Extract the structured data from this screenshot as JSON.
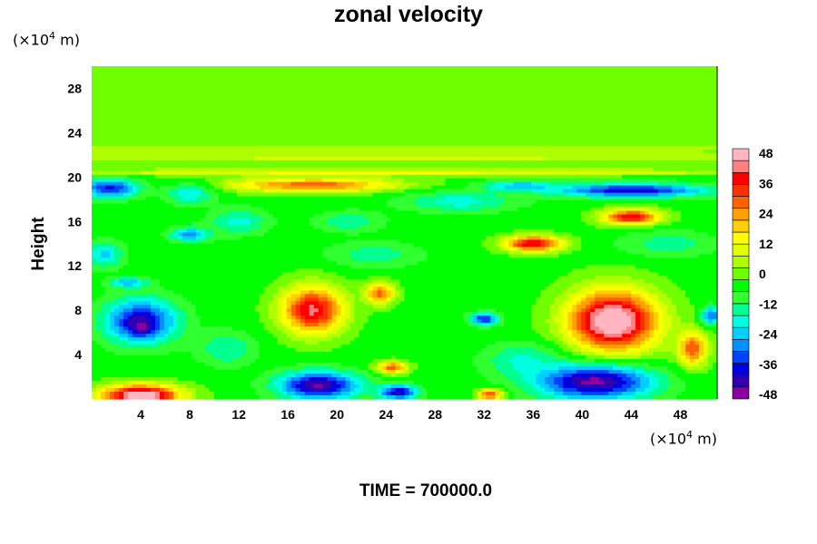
{
  "chart_data": {
    "type": "heatmap",
    "title": "zonal velocity",
    "ylabel": "Height",
    "xlabel": "",
    "x_unit": "(×10",
    "x_unit_exp": "4",
    "x_unit_tail": " m)",
    "y_unit": "(×10",
    "y_unit_exp": "4",
    "y_unit_tail": " m)",
    "annotation": "TIME = 700000.0",
    "xlim": [
      0,
      51
    ],
    "ylim": [
      0,
      30
    ],
    "x_ticks": [
      4,
      8,
      12,
      16,
      20,
      24,
      28,
      32,
      36,
      40,
      44,
      48
    ],
    "y_ticks": [
      4,
      8,
      12,
      16,
      20,
      24,
      28
    ],
    "colorbar": {
      "min": -48,
      "max": 48,
      "tick_values": [
        48,
        36,
        24,
        12,
        0,
        -12,
        -24,
        -36,
        -48
      ],
      "colors": [
        "#8a00a0",
        "#3000b0",
        "#0000e0",
        "#0040ff",
        "#0090ff",
        "#00d0ff",
        "#00ffe0",
        "#00ff90",
        "#30ff30",
        "#00ff00",
        "#70ff00",
        "#b0ff00",
        "#e0ff00",
        "#ffff00",
        "#ffd000",
        "#ffa000",
        "#ff6000",
        "#ff3000",
        "#ff0000",
        "#ff8080",
        "#ffb6c1"
      ]
    },
    "background_value": -4,
    "features": [
      {
        "x": 25,
        "y": 25,
        "rx": 40,
        "ry": 0.6,
        "value": 2
      },
      {
        "x": 25,
        "y": 22.6,
        "rx": 40,
        "ry": 0.5,
        "value": 6
      },
      {
        "x": 25,
        "y": 21.8,
        "rx": 40,
        "ry": 0.4,
        "value": 9
      },
      {
        "x": 25,
        "y": 20.4,
        "rx": 40,
        "ry": 0.35,
        "value": 12
      },
      {
        "x": 18,
        "y": 19.3,
        "rx": 9,
        "ry": 0.8,
        "value": 28
      },
      {
        "x": 1.5,
        "y": 19,
        "rx": 3,
        "ry": 1.1,
        "value": -35
      },
      {
        "x": 8,
        "y": 18.5,
        "rx": 2.5,
        "ry": 1.2,
        "value": -20
      },
      {
        "x": 44,
        "y": 18.8,
        "rx": 8,
        "ry": 0.8,
        "value": -38
      },
      {
        "x": 35,
        "y": 19.2,
        "rx": 4,
        "ry": 0.6,
        "value": -25
      },
      {
        "x": 30,
        "y": 17.8,
        "rx": 6,
        "ry": 1.2,
        "value": -18
      },
      {
        "x": 21,
        "y": 16,
        "rx": 3.5,
        "ry": 1.2,
        "value": -15
      },
      {
        "x": 12,
        "y": 16,
        "rx": 3,
        "ry": 1.5,
        "value": -18
      },
      {
        "x": 8,
        "y": 14.8,
        "rx": 2,
        "ry": 0.8,
        "value": -28
      },
      {
        "x": 44,
        "y": 16.4,
        "rx": 3,
        "ry": 0.9,
        "value": 38
      },
      {
        "x": 36,
        "y": 14,
        "rx": 3,
        "ry": 0.9,
        "value": 40
      },
      {
        "x": 1,
        "y": 13,
        "rx": 2,
        "ry": 1.5,
        "value": -22
      },
      {
        "x": 23,
        "y": 13,
        "rx": 5,
        "ry": 1.5,
        "value": -14
      },
      {
        "x": 47,
        "y": 14,
        "rx": 5,
        "ry": 1.5,
        "value": -14
      },
      {
        "x": 3,
        "y": 10.5,
        "rx": 2,
        "ry": 0.6,
        "value": -24
      },
      {
        "x": 18,
        "y": 8,
        "rx": 3.2,
        "ry": 2.7,
        "value": 40
      },
      {
        "x": 23.5,
        "y": 9.5,
        "rx": 1.5,
        "ry": 1.2,
        "value": 28
      },
      {
        "x": 4,
        "y": 7,
        "rx": 3.8,
        "ry": 2.6,
        "value": -38
      },
      {
        "x": 4,
        "y": 6.6,
        "rx": 1.3,
        "ry": 1.0,
        "value": -45
      },
      {
        "x": 32,
        "y": 7.2,
        "rx": 1.5,
        "ry": 0.7,
        "value": -36
      },
      {
        "x": 42.5,
        "y": 7,
        "rx": 4.6,
        "ry": 3.5,
        "value": 52
      },
      {
        "x": 49,
        "y": 4.5,
        "rx": 1.5,
        "ry": 2,
        "value": 30
      },
      {
        "x": 50.5,
        "y": 7.5,
        "rx": 1,
        "ry": 1,
        "value": -30
      },
      {
        "x": 11,
        "y": 4.5,
        "rx": 3,
        "ry": 2,
        "value": -16
      },
      {
        "x": 35,
        "y": 3.5,
        "rx": 4,
        "ry": 2,
        "value": -16
      },
      {
        "x": 24.5,
        "y": 2.8,
        "rx": 1.5,
        "ry": 0.7,
        "value": 30
      },
      {
        "x": 18.5,
        "y": 1.2,
        "rx": 4.2,
        "ry": 1.6,
        "value": -44
      },
      {
        "x": 25,
        "y": 0.6,
        "rx": 2,
        "ry": 0.8,
        "value": -40
      },
      {
        "x": 41,
        "y": 1.5,
        "rx": 6,
        "ry": 2,
        "value": -45
      },
      {
        "x": 4,
        "y": 0.3,
        "rx": 4,
        "ry": 1.2,
        "value": 52
      },
      {
        "x": 32.5,
        "y": 0.4,
        "rx": 1.2,
        "ry": 0.6,
        "value": 32
      }
    ]
  }
}
